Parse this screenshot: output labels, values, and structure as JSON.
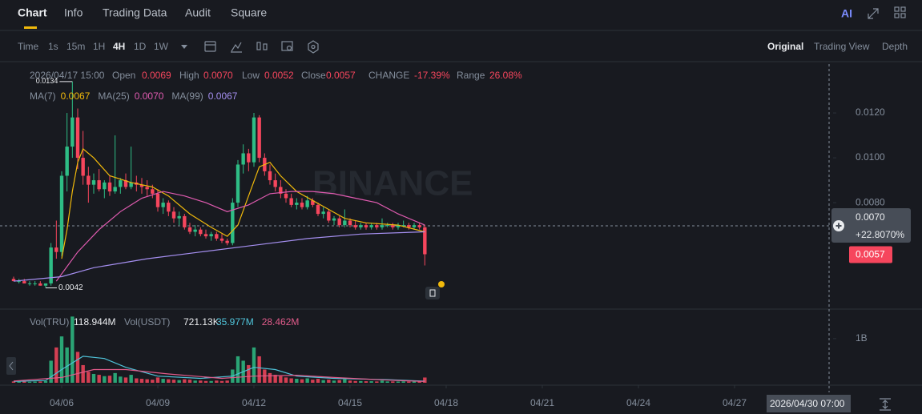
{
  "tabs": [
    "Chart",
    "Info",
    "Trading Data",
    "Audit",
    "Square"
  ],
  "ai_label": "AI",
  "intervals": [
    "Time",
    "1s",
    "15m",
    "1H",
    "4H",
    "1D",
    "1W"
  ],
  "views": [
    "Original",
    "Trading View",
    "Depth"
  ],
  "legend": {
    "time": "2026/04/17 15:00",
    "fields": [
      {
        "label": "Open",
        "value": "0.0069"
      },
      {
        "label": "High",
        "value": "0.0070"
      },
      {
        "label": "Low",
        "value": "0.0052"
      },
      {
        "label": "Close",
        "value": "0.0057"
      },
      {
        "label": "CHANGE",
        "value": "-17.39%"
      },
      {
        "label": "Range",
        "value": "26.08%"
      }
    ]
  },
  "vol_legend": [
    {
      "label": "Vol(TRU)",
      "value": "118.944M"
    },
    {
      "label": "Vol(USDT)",
      "value": "721.13K"
    }
  ],
  "watermark": "BINANCE",
  "crosshair": {
    "price": "0.0070",
    "change": "+22.8070%",
    "time": "2026/04/30 07:00"
  },
  "chart_data": {
    "type": "candlestick",
    "colors": {
      "up": "#2ebd85",
      "down": "#f6465d"
    },
    "xlim": [
      -1.35,
      153.45
    ],
    "xticks": [
      {
        "value": 9,
        "label": "04/06"
      },
      {
        "value": 27,
        "label": "04/09"
      },
      {
        "value": 45,
        "label": "04/12"
      },
      {
        "value": 63,
        "label": "04/15"
      },
      {
        "value": 81,
        "label": "04/18"
      },
      {
        "value": 99,
        "label": "04/21"
      },
      {
        "value": 117,
        "label": "04/24"
      },
      {
        "value": 135,
        "label": "04/27"
      }
    ],
    "ylim": [
      0.00329,
      0.01418
    ],
    "yticks": [
      {
        "value": 0.008,
        "label": "0.0080"
      },
      {
        "value": 0.01,
        "label": "0.0100"
      },
      {
        "value": 0.012,
        "label": "0.0120"
      }
    ],
    "open": [
      0.0046,
      0.0045,
      0.0045,
      0.0044,
      0.0044,
      0.0044,
      0.0043,
      0.0044,
      0.006,
      0.0058,
      0.0092,
      0.0105,
      0.0118,
      0.01,
      0.0092,
      0.0088,
      0.009,
      0.0086,
      0.0089,
      0.0085,
      0.0087,
      0.009,
      0.0087,
      0.0089,
      0.0088,
      0.0087,
      0.0086,
      0.0084,
      0.0078,
      0.008,
      0.0076,
      0.0073,
      0.0074,
      0.0069,
      0.0067,
      0.0068,
      0.0066,
      0.0065,
      0.0066,
      0.0064,
      0.0063,
      0.0062,
      0.008,
      0.0097,
      0.0102,
      0.0098,
      0.0118,
      0.01,
      0.0094,
      0.009,
      0.0087,
      0.0084,
      0.0082,
      0.0079,
      0.008,
      0.0078,
      0.0081,
      0.0079,
      0.0075,
      0.0076,
      0.0072,
      0.0073,
      0.007,
      0.0072,
      0.007,
      0.0069,
      0.007,
      0.0069,
      0.007,
      0.0069,
      0.007,
      0.007,
      0.0069,
      0.007,
      0.007,
      0.0069,
      0.007,
      0.0069
    ],
    "high": [
      0.0047,
      0.0046,
      0.0046,
      0.0045,
      0.0045,
      0.0045,
      0.0044,
      0.0062,
      0.0072,
      0.0094,
      0.012,
      0.0134,
      0.0122,
      0.0112,
      0.0096,
      0.0093,
      0.0095,
      0.009,
      0.0092,
      0.011,
      0.0091,
      0.0093,
      0.0105,
      0.0092,
      0.0091,
      0.009,
      0.0088,
      0.0086,
      0.0082,
      0.0081,
      0.0078,
      0.0076,
      0.0075,
      0.0071,
      0.007,
      0.0069,
      0.0068,
      0.0067,
      0.0067,
      0.0066,
      0.0064,
      0.0082,
      0.0099,
      0.0106,
      0.0104,
      0.012,
      0.0119,
      0.0102,
      0.0097,
      0.0093,
      0.009,
      0.0086,
      0.0084,
      0.0082,
      0.0082,
      0.0083,
      0.0082,
      0.008,
      0.0078,
      0.0077,
      0.0074,
      0.0074,
      0.0077,
      0.0073,
      0.0072,
      0.0071,
      0.0071,
      0.0071,
      0.0071,
      0.0073,
      0.0071,
      0.0071,
      0.0071,
      0.0072,
      0.0071,
      0.0071,
      0.0071,
      0.007
    ],
    "low": [
      0.0045,
      0.0044,
      0.0044,
      0.0043,
      0.0043,
      0.0043,
      0.0042,
      0.0043,
      0.0055,
      0.0056,
      0.0085,
      0.01,
      0.0095,
      0.0088,
      0.008,
      0.0084,
      0.0085,
      0.0082,
      0.0083,
      0.0084,
      0.0084,
      0.0086,
      0.0086,
      0.0085,
      0.0084,
      0.0083,
      0.0082,
      0.0076,
      0.0075,
      0.0074,
      0.0071,
      0.007,
      0.0068,
      0.0066,
      0.0065,
      0.0065,
      0.0064,
      0.0063,
      0.0063,
      0.0062,
      0.0061,
      0.0061,
      0.0078,
      0.0093,
      0.0094,
      0.0096,
      0.0098,
      0.0092,
      0.0088,
      0.0085,
      0.0082,
      0.008,
      0.0078,
      0.0077,
      0.0077,
      0.0077,
      0.0078,
      0.0074,
      0.0073,
      0.0071,
      0.007,
      0.0069,
      0.0069,
      0.0069,
      0.0068,
      0.0068,
      0.0068,
      0.0068,
      0.0068,
      0.0068,
      0.0069,
      0.0068,
      0.0068,
      0.0069,
      0.0068,
      0.0068,
      0.0068,
      0.0052
    ],
    "close": [
      0.0045,
      0.0045,
      0.0044,
      0.0044,
      0.0044,
      0.0043,
      0.0044,
      0.006,
      0.0058,
      0.0092,
      0.0105,
      0.0118,
      0.01,
      0.0092,
      0.0088,
      0.009,
      0.0086,
      0.0089,
      0.0085,
      0.0087,
      0.009,
      0.0087,
      0.0089,
      0.0088,
      0.0087,
      0.0086,
      0.0084,
      0.0078,
      0.008,
      0.0076,
      0.0073,
      0.0074,
      0.0069,
      0.0067,
      0.0068,
      0.0066,
      0.0065,
      0.0066,
      0.0064,
      0.0063,
      0.0062,
      0.008,
      0.0097,
      0.0102,
      0.0098,
      0.0118,
      0.01,
      0.0094,
      0.009,
      0.0087,
      0.0084,
      0.0082,
      0.0079,
      0.008,
      0.0078,
      0.0081,
      0.0079,
      0.0075,
      0.0076,
      0.0072,
      0.0073,
      0.007,
      0.0072,
      0.007,
      0.0069,
      0.007,
      0.0069,
      0.007,
      0.0069,
      0.007,
      0.007,
      0.0069,
      0.007,
      0.007,
      0.0069,
      0.007,
      0.0069,
      0.0057
    ],
    "volume": [
      30000000.0,
      25000000.0,
      28000000.0,
      22000000.0,
      26000000.0,
      30000000.0,
      40000000.0,
      500000000.0,
      800000000.0,
      1050000000.0,
      800000000.0,
      1500000000.0,
      700000000.0,
      400000000.0,
      250000000.0,
      200000000.0,
      180000000.0,
      150000000.0,
      160000000.0,
      220000000.0,
      140000000.0,
      120000000.0,
      180000000.0,
      100000000.0,
      90000000.0,
      80000000.0,
      70000000.0,
      120000000.0,
      90000000.0,
      80000000.0,
      70000000.0,
      60000000.0,
      80000000.0,
      70000000.0,
      50000000.0,
      50000000.0,
      40000000.0,
      40000000.0,
      50000000.0,
      40000000.0,
      50000000.0,
      300000000.0,
      600000000.0,
      500000000.0,
      400000000.0,
      800000000.0,
      600000000.0,
      300000000.0,
      220000000.0,
      180000000.0,
      150000000.0,
      120000000.0,
      100000000.0,
      90000000.0,
      80000000.0,
      100000000.0,
      70000000.0,
      90000000.0,
      60000000.0,
      70000000.0,
      50000000.0,
      60000000.0,
      80000000.0,
      50000000.0,
      40000000.0,
      40000000.0,
      35000000.0,
      35000000.0,
      30000000.0,
      50000000.0,
      30000000.0,
      30000000.0,
      28000000.0,
      32000000.0,
      30000000.0,
      28000000.0,
      30000000.0,
      118944000.0
    ],
    "ma_series": [
      {
        "name": "MA(7)",
        "legend_value": "0.0067",
        "color": "#f0b90b",
        "x": [
          9,
          10,
          11,
          12,
          13,
          15,
          18,
          22,
          26,
          29,
          33,
          37,
          40,
          42,
          44,
          46,
          48,
          50,
          53,
          56,
          59,
          62,
          66,
          72,
          77
        ],
        "values": [
          0.0055,
          0.0068,
          0.0085,
          0.0098,
          0.0104,
          0.01,
          0.0092,
          0.0089,
          0.0087,
          0.0083,
          0.0075,
          0.0069,
          0.0065,
          0.007,
          0.0083,
          0.0096,
          0.0098,
          0.0092,
          0.0085,
          0.0081,
          0.0077,
          0.0073,
          0.0071,
          0.007,
          0.0067
        ]
      },
      {
        "name": "MA(25)",
        "legend_value": "0.0070",
        "color": "#e05bb0",
        "x": [
          8,
          12,
          16,
          20,
          24,
          28,
          32,
          36,
          40,
          44,
          48,
          52,
          56,
          60,
          64,
          68,
          72,
          77
        ],
        "values": [
          0.0045,
          0.0058,
          0.0068,
          0.0076,
          0.0082,
          0.0085,
          0.0083,
          0.008,
          0.0076,
          0.0079,
          0.0084,
          0.0085,
          0.0085,
          0.0084,
          0.0082,
          0.008,
          0.0075,
          0.007
        ]
      },
      {
        "name": "MA(99)",
        "legend_value": "0.0067",
        "color": "#a58ff0",
        "x": [
          0,
          9,
          15,
          25,
          35,
          45,
          55,
          65,
          77
        ],
        "values": [
          0.0045,
          0.0047,
          0.0051,
          0.0055,
          0.0058,
          0.0061,
          0.0064,
          0.0066,
          0.0067
        ]
      }
    ],
    "volume_ylim": [
      0,
      1560000000.0
    ],
    "volume_yticks": [
      {
        "value": 1000000000.0,
        "label": "1B"
      }
    ],
    "volume_ma_series": [
      {
        "legend_value": "35.977M",
        "color": "#4fc3d9",
        "x": [
          0,
          6,
          9,
          13,
          17,
          21,
          27,
          35,
          41,
          45,
          49,
          53,
          60,
          70,
          77
        ],
        "values": [
          30000000.0,
          50000000.0,
          300000000.0,
          600000000.0,
          550000000.0,
          350000000.0,
          150000000.0,
          100000000.0,
          150000000.0,
          350000000.0,
          300000000.0,
          150000000.0,
          100000000.0,
          70000000.0,
          35977000.0
        ]
      },
      {
        "legend_value": "28.462M",
        "color": "#e05b8a",
        "x": [
          0,
          9,
          15,
          21,
          29,
          39,
          45,
          53,
          60,
          70,
          77
        ],
        "values": [
          40000000.0,
          120000000.0,
          300000000.0,
          300000000.0,
          200000000.0,
          100000000.0,
          150000000.0,
          170000000.0,
          120000000.0,
          60000000.0,
          28462000.0
        ]
      }
    ]
  }
}
